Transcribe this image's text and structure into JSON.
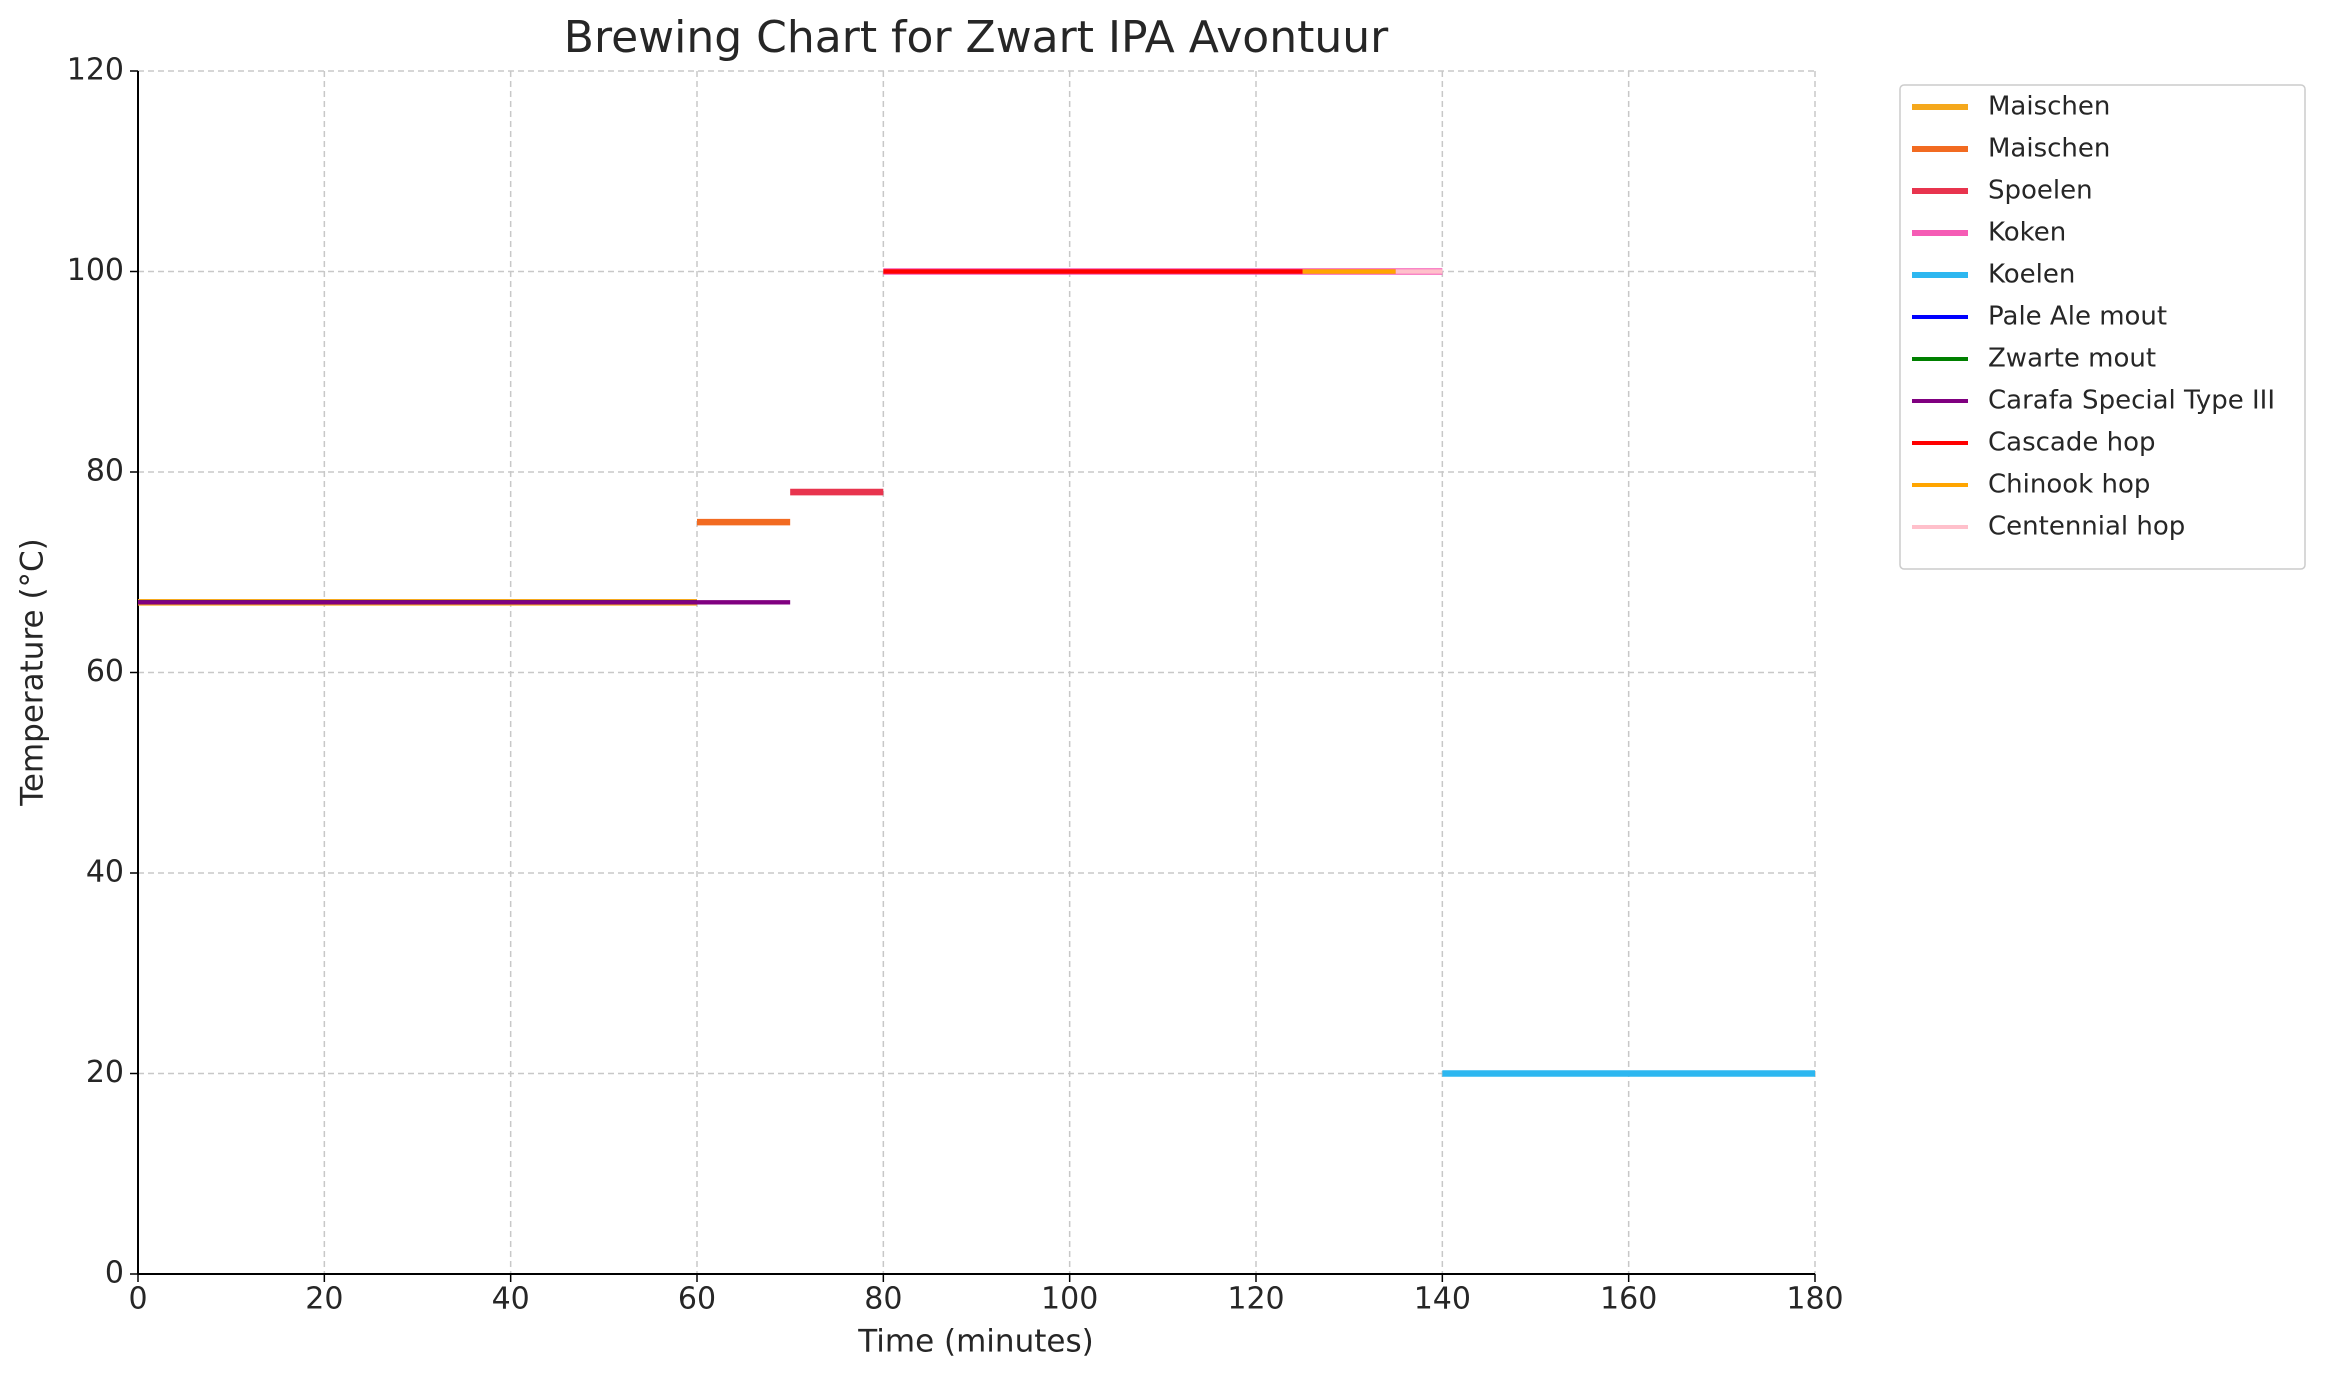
{
  "chart_data": {
    "type": "line",
    "title": "Brewing Chart for Zwart IPA Avontuur",
    "x_label": "Time (minutes)",
    "y_label": "Temperature (°C)",
    "xlim": [
      0,
      180
    ],
    "ylim": [
      0,
      120
    ],
    "xticks": [
      0,
      20,
      40,
      60,
      80,
      100,
      120,
      140,
      160,
      180
    ],
    "yticks": [
      0,
      20,
      40,
      60,
      80,
      100,
      120
    ],
    "grid": true,
    "legend": "outside upper right",
    "series": [
      {
        "name": "Maischen",
        "color": "#f5a81c",
        "width": 3,
        "x": [
          0,
          60
        ],
        "values": [
          67,
          67
        ]
      },
      {
        "name": "Maischen",
        "color": "#f26b21",
        "width": 3,
        "x": [
          60,
          70
        ],
        "values": [
          75,
          75
        ]
      },
      {
        "name": "Spoelen",
        "color": "#e8344e",
        "width": 3,
        "x": [
          70,
          80
        ],
        "values": [
          78,
          78
        ]
      },
      {
        "name": "Koken",
        "color": "#f55cb5",
        "width": 3,
        "x": [
          80,
          140
        ],
        "values": [
          100,
          100
        ]
      },
      {
        "name": "Koelen",
        "color": "#2db7f0",
        "width": 3,
        "x": [
          140,
          180
        ],
        "values": [
          20,
          20
        ]
      },
      {
        "name": "Pale Ale mout",
        "color": "#0000ff",
        "width": 2,
        "x": [
          0,
          60
        ],
        "values": [
          67,
          67
        ]
      },
      {
        "name": "Zwarte mout",
        "color": "#008000",
        "width": 2,
        "x": [
          0,
          60
        ],
        "values": [
          67,
          67
        ]
      },
      {
        "name": "Carafa Special Type III",
        "color": "#800080",
        "width": 2,
        "x": [
          0,
          70
        ],
        "values": [
          67,
          67
        ]
      },
      {
        "name": "Cascade hop",
        "color": "#ff0000",
        "width": 2,
        "x": [
          80,
          125
        ],
        "values": [
          100,
          100
        ]
      },
      {
        "name": "Chinook hop",
        "color": "#ffa500",
        "width": 2,
        "x": [
          125,
          135
        ],
        "values": [
          100,
          100
        ]
      },
      {
        "name": "Centennial hop",
        "color": "#ffc0cb",
        "width": 2,
        "x": [
          135,
          140
        ],
        "values": [
          100,
          100
        ]
      }
    ]
  }
}
